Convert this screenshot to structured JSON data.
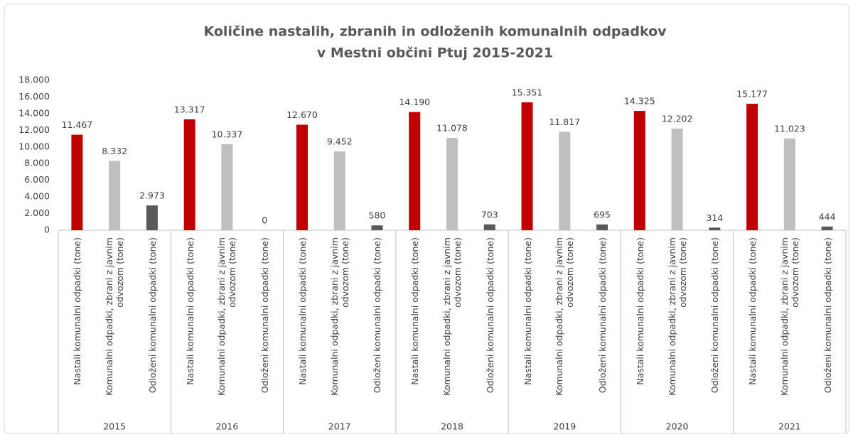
{
  "chart_data": {
    "type": "bar",
    "title": "Količine nastalih, zbranih in odloženih komunalnih odpadkov",
    "subtitle": "v Mestni občini Ptuj 2015-2021",
    "categories": [
      "2015",
      "2016",
      "2017",
      "2018",
      "2019",
      "2020",
      "2021"
    ],
    "series": [
      {
        "name": "Nastali komunalni odpadki (tone)",
        "color": "#c00000",
        "values": [
          11467,
          13317,
          12670,
          14190,
          15351,
          14325,
          15177
        ],
        "value_labels": [
          "11.467",
          "13.317",
          "12.670",
          "14.190",
          "15.351",
          "14.325",
          "15.177"
        ]
      },
      {
        "name": "Komunalni odpadki, zbrani z javnim odvozom (tone)",
        "color": "#bfbfbf",
        "values": [
          8332,
          10337,
          9452,
          11078,
          11817,
          12202,
          11023
        ],
        "value_labels": [
          "8.332",
          "10.337",
          "9.452",
          "11.078",
          "11.817",
          "12.202",
          "11.023"
        ]
      },
      {
        "name": "Odloženi komunalni odpadki (tone)",
        "color": "#595959",
        "values": [
          2973,
          0,
          580,
          703,
          695,
          314,
          444
        ],
        "value_labels": [
          "2.973",
          "0",
          "580",
          "703",
          "695",
          "314",
          "444"
        ]
      }
    ],
    "ylim": [
      0,
      18000
    ],
    "yticks": [
      0,
      {
        "value": 2000,
        "label": "2.000"
      },
      {
        "value": 4000,
        "label": "4.000"
      },
      {
        "value": 6000,
        "label": "6.000"
      },
      {
        "value": 8000,
        "label": "8.000"
      },
      {
        "value": 10000,
        "label": "10.000"
      },
      {
        "value": 12000,
        "label": "12.000"
      },
      {
        "value": 14000,
        "label": "14.000"
      },
      {
        "value": 16000,
        "label": "16.000"
      },
      {
        "value": 18000,
        "label": "18.000"
      }
    ],
    "grid": false
  }
}
